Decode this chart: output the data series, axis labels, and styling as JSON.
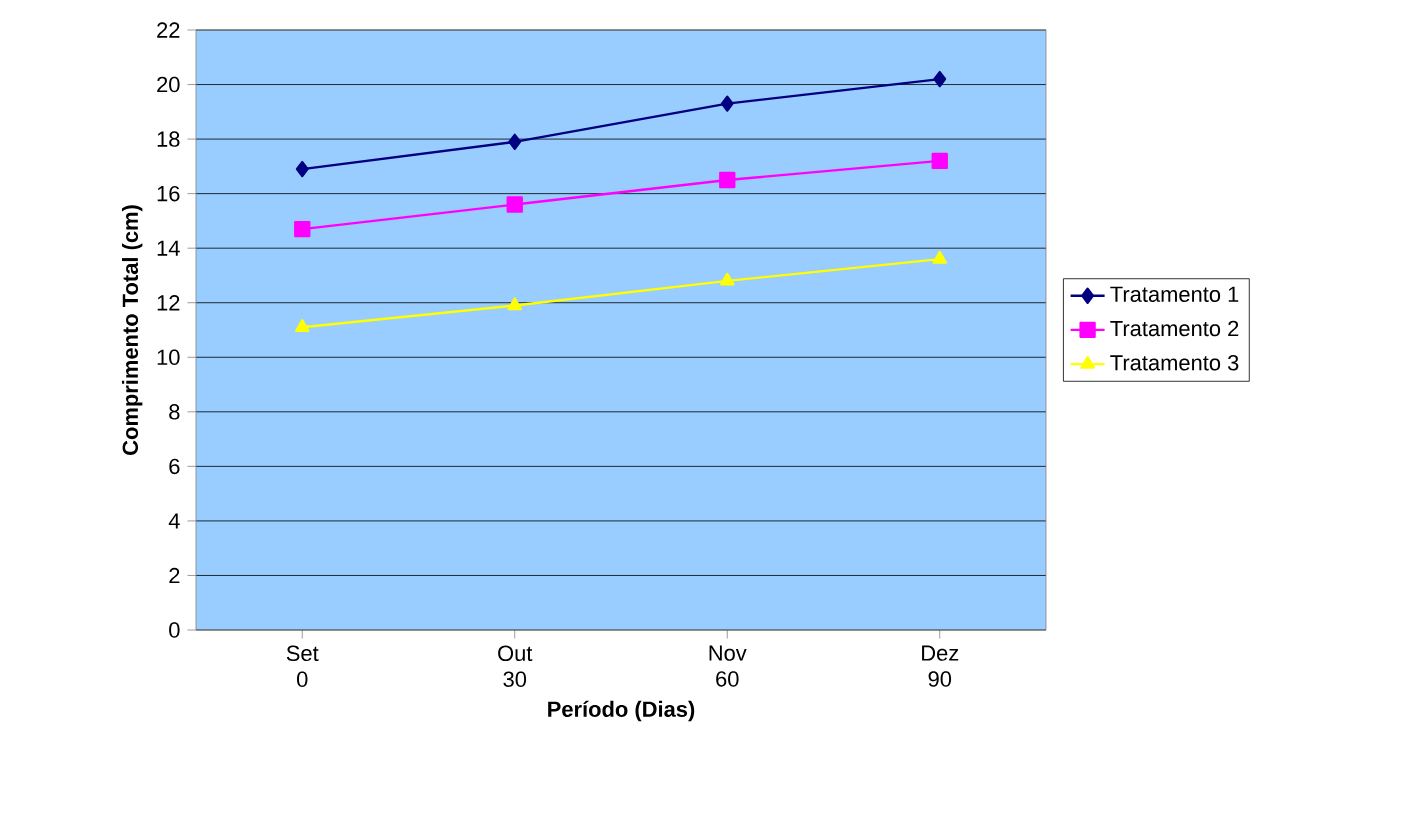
{
  "chart_data": {
    "type": "line",
    "xlabel": "Período (Dias)",
    "ylabel": "Comprimento Total (cm)",
    "categories": [
      "Set 0",
      "Out 30",
      "Nov 60",
      "Dez 90"
    ],
    "ylim": [
      0,
      22
    ],
    "yticks": [
      0,
      2,
      4,
      6,
      8,
      10,
      12,
      14,
      16,
      18,
      20,
      22
    ],
    "grid": "y",
    "legend": "right",
    "series": [
      {
        "name": "Tratamento 1",
        "color": "#000080",
        "marker": "diamond",
        "values": [
          16.9,
          17.9,
          19.3,
          20.2
        ]
      },
      {
        "name": "Tratamento 2",
        "color": "#ff00ff",
        "marker": "square",
        "values": [
          14.7,
          15.6,
          16.5,
          17.2
        ]
      },
      {
        "name": "Tratamento 3",
        "color": "#ffff00",
        "marker": "triangle",
        "values": [
          11.1,
          11.9,
          12.8,
          13.6
        ]
      }
    ]
  }
}
